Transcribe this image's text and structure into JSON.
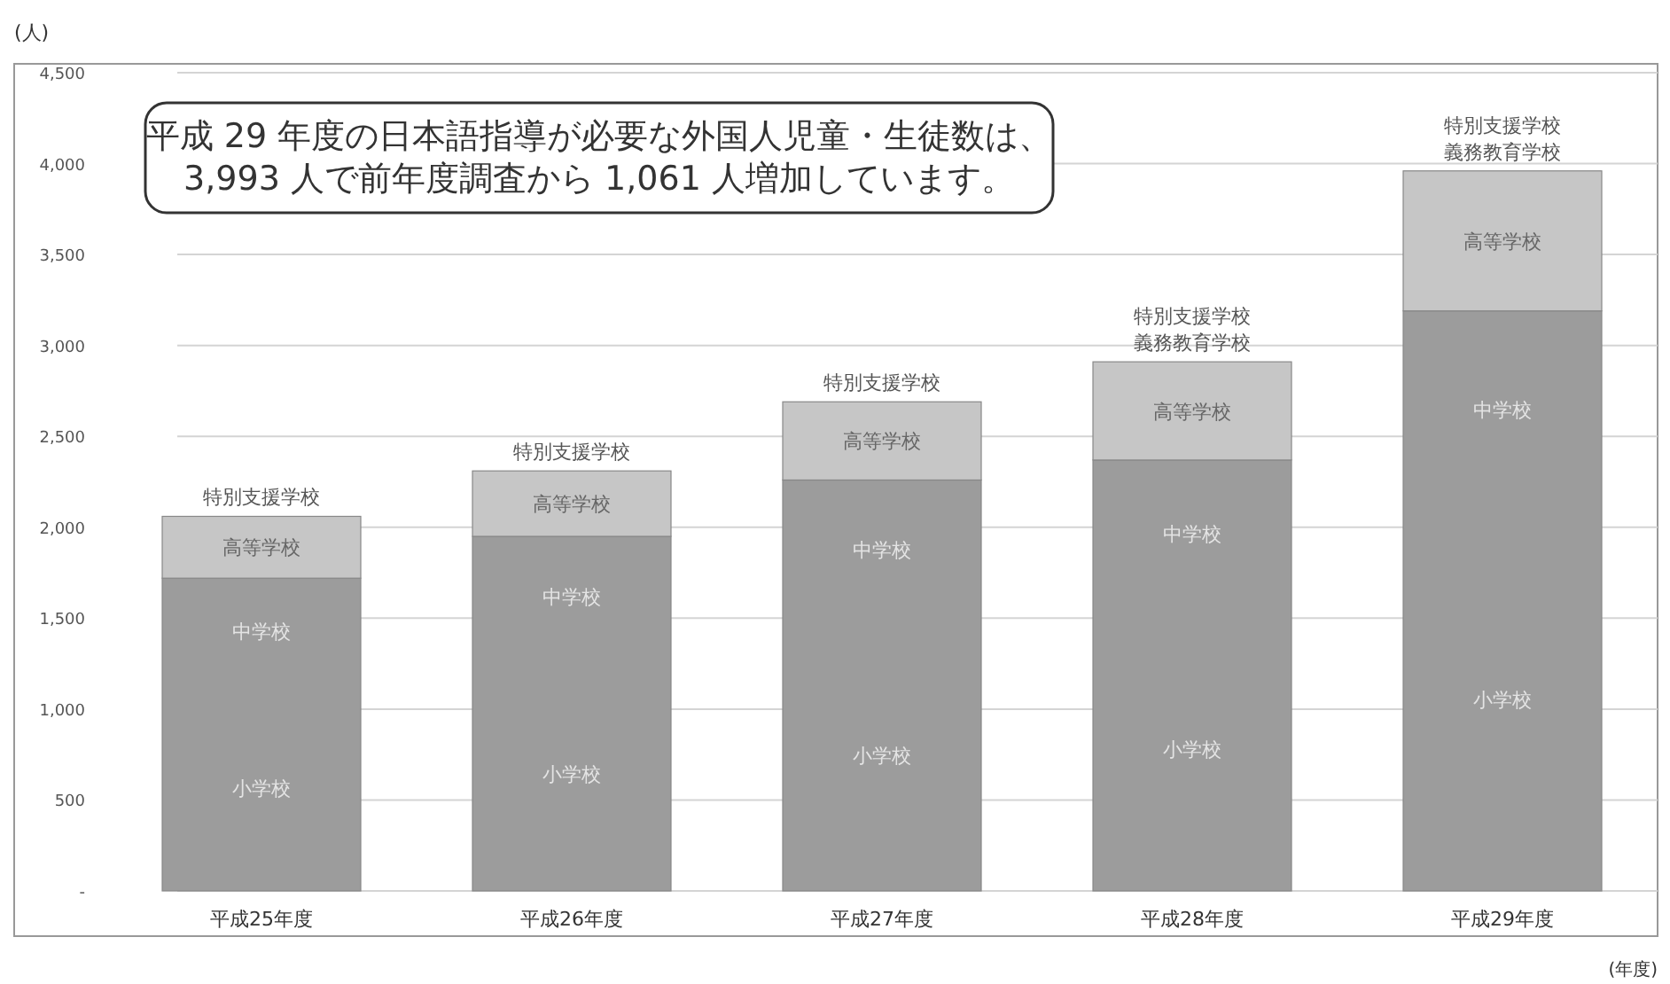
{
  "chart_data": {
    "type": "bar",
    "stacked": true,
    "ylabel": "(人)",
    "xlabel": "(年度)",
    "categories": [
      "平成25年度",
      "平成26年度",
      "平成27年度",
      "平成28年度",
      "平成29年度"
    ],
    "series": [
      {
        "color": "#9c9c9c",
        "values": [
          1720,
          1950,
          2260,
          2370,
          3190
        ]
      },
      {
        "color": "#c6c6c6",
        "values": [
          340,
          360,
          430,
          540,
          770
        ]
      }
    ],
    "ylim": [
      0,
      4500
    ],
    "yticks": [
      {
        "value": 0,
        "label": "-"
      },
      500,
      {
        "value": 1000,
        "label": "1,000"
      },
      {
        "value": 1500,
        "label": "1,500"
      },
      {
        "value": 2000,
        "label": "2,000"
      },
      {
        "value": 2500,
        "label": "2,500"
      },
      {
        "value": 3000,
        "label": "3,000"
      },
      {
        "value": 3500,
        "label": "3,500"
      },
      {
        "value": 4000,
        "label": "4,000"
      },
      {
        "value": 4500,
        "label": "4,500"
      }
    ],
    "grid": "y",
    "annotations": [
      "平成 29 年度の日本語指導が必要な外国人児童・生徒数は、\n3,993 人で前年度調査から 1,061 人増加しています。",
      "特別支援学校",
      "高等学校",
      "中学校",
      "小学校",
      "特別支援学校",
      "高等学校",
      "中学校",
      "小学校",
      "特別支援学校",
      "高等学校",
      "中学校",
      "小学校",
      "特別支援学校",
      "義務教育学校",
      "高等学校",
      "中学校",
      "小学校",
      "特別支援学校",
      "義務教育学校",
      "高等学校",
      "中学校",
      "小学校"
    ]
  }
}
